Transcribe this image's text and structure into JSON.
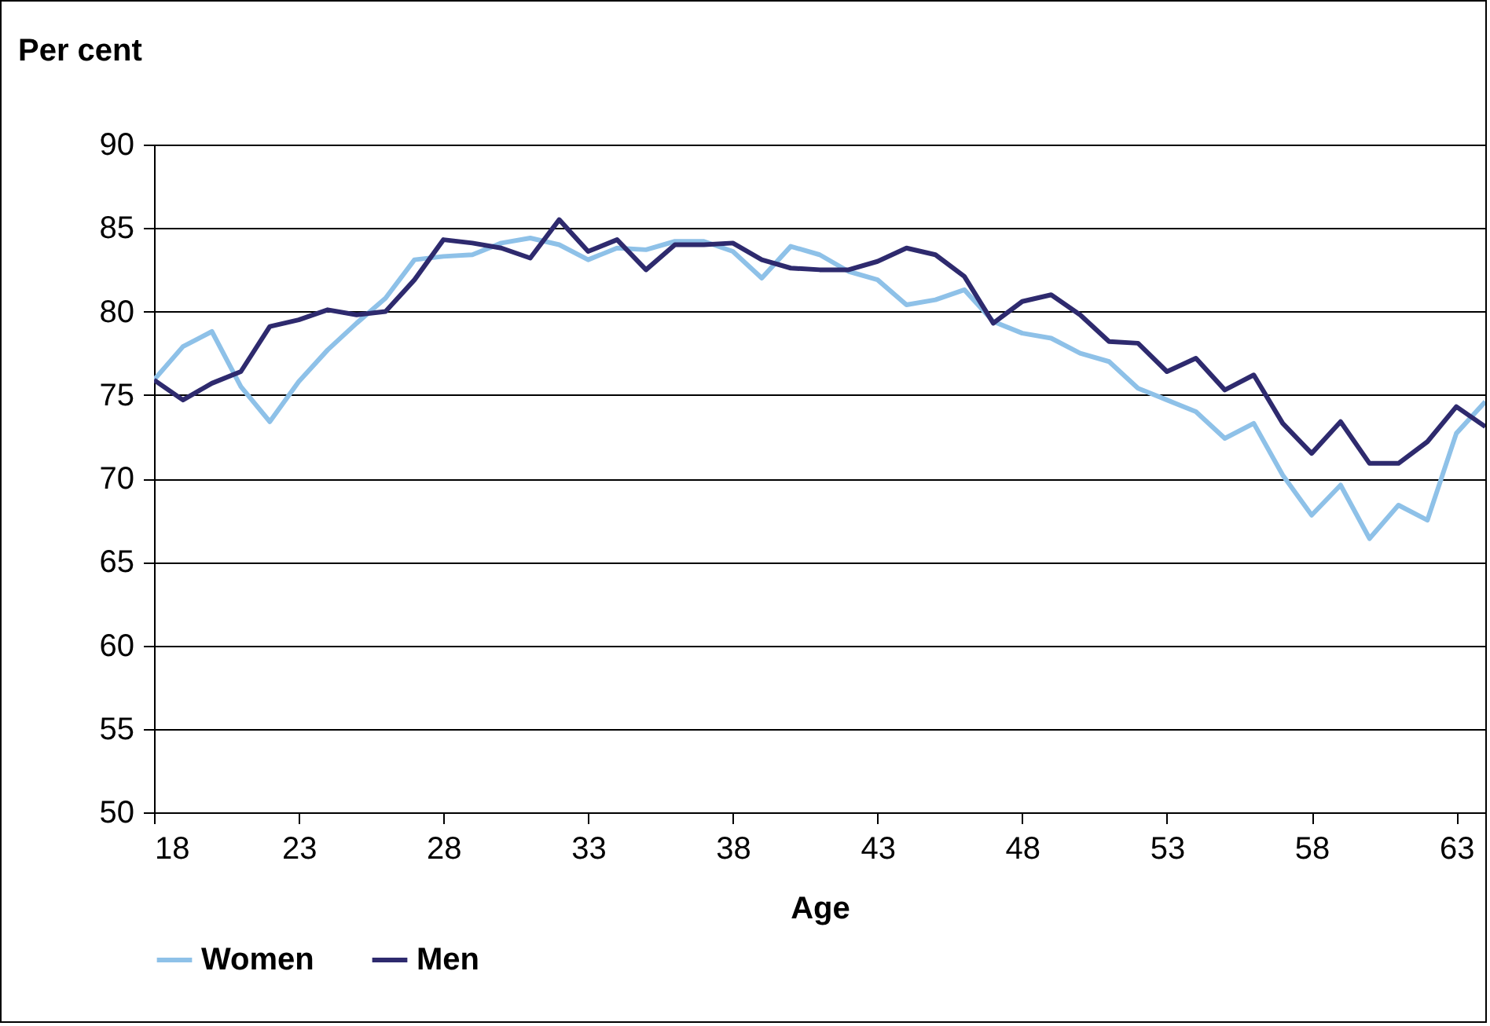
{
  "chart_data": {
    "type": "line",
    "ylabel": "Per cent",
    "xlabel": "Age",
    "x": [
      18,
      19,
      20,
      21,
      22,
      23,
      24,
      25,
      26,
      27,
      28,
      29,
      30,
      31,
      32,
      33,
      34,
      35,
      36,
      37,
      38,
      39,
      40,
      41,
      42,
      43,
      44,
      45,
      46,
      47,
      48,
      49,
      50,
      51,
      52,
      53,
      54,
      55,
      56,
      57,
      58,
      59,
      60,
      61,
      62,
      63,
      64
    ],
    "series": [
      {
        "name": "Women",
        "color": "#8ec1e8",
        "values": [
          75.9,
          77.9,
          78.8,
          75.5,
          73.4,
          75.8,
          77.7,
          79.3,
          80.8,
          83.1,
          83.3,
          83.4,
          84.1,
          84.4,
          84.0,
          83.1,
          83.8,
          83.7,
          84.2,
          84.2,
          83.6,
          82.0,
          83.9,
          83.4,
          82.4,
          81.9,
          80.4,
          80.7,
          81.3,
          79.4,
          78.7,
          78.4,
          77.5,
          77.0,
          75.4,
          74.7,
          74.0,
          72.4,
          73.3,
          70.2,
          67.8,
          69.6,
          66.4,
          68.4,
          67.5,
          72.7,
          74.6
        ]
      },
      {
        "name": "Men",
        "color": "#2e2a6e",
        "values": [
          75.9,
          74.7,
          75.7,
          76.4,
          79.1,
          79.5,
          80.1,
          79.8,
          80.0,
          81.9,
          84.3,
          84.1,
          83.8,
          83.2,
          85.5,
          83.6,
          84.3,
          82.5,
          84.0,
          84.0,
          84.1,
          83.1,
          82.6,
          82.5,
          82.5,
          83.0,
          83.8,
          83.4,
          82.1,
          79.3,
          80.6,
          81.0,
          79.8,
          78.2,
          78.1,
          76.4,
          77.2,
          75.3,
          76.2,
          73.3,
          71.5,
          73.4,
          70.9,
          70.9,
          72.2,
          74.3,
          73.1
        ]
      }
    ],
    "xlim": [
      18,
      64
    ],
    "xticks": [
      18,
      23,
      28,
      33,
      38,
      43,
      48,
      53,
      58,
      63
    ],
    "ylim": [
      50,
      90
    ],
    "yticks": [
      50,
      55,
      60,
      65,
      70,
      75,
      80,
      85,
      90
    ],
    "grid": "y",
    "legend": "bottom",
    "line_style": "solid"
  }
}
